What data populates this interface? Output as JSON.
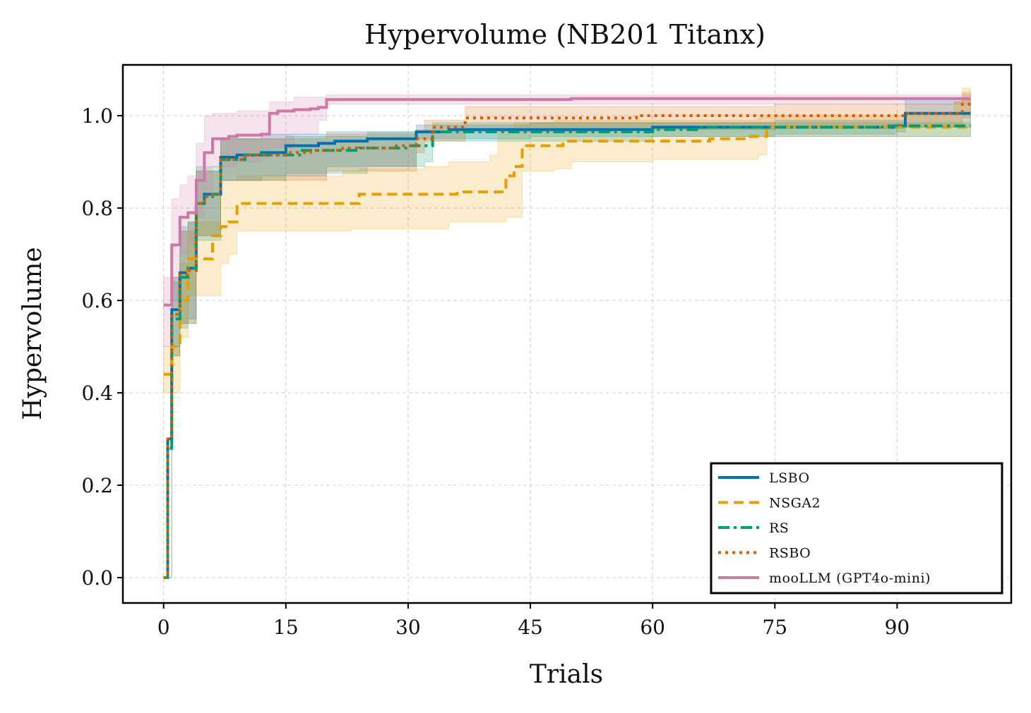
{
  "chart_data": {
    "type": "line",
    "title": "Hypervolume (NB201 Titanx)",
    "xlabel": "Trials",
    "ylabel": "Hypervolume",
    "xlim": [
      -5,
      104
    ],
    "ylim": [
      -0.055,
      1.11
    ],
    "xticks": [
      0,
      15,
      30,
      45,
      60,
      75,
      90
    ],
    "yticks": [
      0.0,
      0.2,
      0.4,
      0.6,
      0.8,
      1.0
    ],
    "ytick_labels": [
      "0.0",
      "0.2",
      "0.4",
      "0.6",
      "0.8",
      "1.0"
    ],
    "xtick_labels": [
      "0",
      "15",
      "30",
      "45",
      "60",
      "75",
      "90"
    ],
    "grid": true,
    "legend_position": "lower-right",
    "series": [
      {
        "name": "LSBO",
        "color": "#0072B2",
        "dash": "solid",
        "points": [
          [
            0,
            0.0
          ],
          [
            0.5,
            0.3
          ],
          [
            1,
            0.58
          ],
          [
            2,
            0.66
          ],
          [
            3,
            0.67
          ],
          [
            4,
            0.81
          ],
          [
            5,
            0.83
          ],
          [
            6,
            0.83
          ],
          [
            7,
            0.91
          ],
          [
            9,
            0.915
          ],
          [
            12,
            0.92
          ],
          [
            15,
            0.935
          ],
          [
            19,
            0.94
          ],
          [
            21,
            0.945
          ],
          [
            25,
            0.95
          ],
          [
            30,
            0.95
          ],
          [
            31,
            0.965
          ],
          [
            33,
            0.965
          ],
          [
            35,
            0.97
          ],
          [
            45,
            0.97
          ],
          [
            60,
            0.975
          ],
          [
            75,
            0.975
          ],
          [
            90,
            0.978
          ],
          [
            91,
            1.005
          ],
          [
            99,
            1.005
          ]
        ],
        "band_upper": [
          [
            0,
            0.0
          ],
          [
            1,
            0.65
          ],
          [
            2,
            0.76
          ],
          [
            3,
            0.77
          ],
          [
            4,
            0.88
          ],
          [
            7,
            0.95
          ],
          [
            12,
            0.96
          ],
          [
            20,
            0.965
          ],
          [
            31,
            0.98
          ],
          [
            45,
            0.985
          ],
          [
            75,
            0.99
          ],
          [
            90,
            0.99
          ],
          [
            91,
            1.035
          ],
          [
            99,
            1.035
          ]
        ],
        "band_lower": [
          [
            0,
            0.0
          ],
          [
            1,
            0.5
          ],
          [
            2,
            0.55
          ],
          [
            3,
            0.56
          ],
          [
            4,
            0.74
          ],
          [
            7,
            0.86
          ],
          [
            12,
            0.87
          ],
          [
            20,
            0.89
          ],
          [
            31,
            0.95
          ],
          [
            45,
            0.955
          ],
          [
            75,
            0.96
          ],
          [
            90,
            0.965
          ],
          [
            91,
            0.975
          ],
          [
            99,
            0.975
          ]
        ]
      },
      {
        "name": "NSGA2",
        "color": "#E69F00",
        "dash": "dashed",
        "points": [
          [
            0,
            0.44
          ],
          [
            1,
            0.5
          ],
          [
            2,
            0.6
          ],
          [
            3,
            0.69
          ],
          [
            5,
            0.69
          ],
          [
            6,
            0.74
          ],
          [
            7,
            0.76
          ],
          [
            8,
            0.77
          ],
          [
            9,
            0.81
          ],
          [
            20,
            0.81
          ],
          [
            22,
            0.81
          ],
          [
            24,
            0.83
          ],
          [
            34,
            0.83
          ],
          [
            36,
            0.835
          ],
          [
            40,
            0.835
          ],
          [
            42,
            0.87
          ],
          [
            43,
            0.89
          ],
          [
            44,
            0.935
          ],
          [
            48,
            0.935
          ],
          [
            49,
            0.945
          ],
          [
            60,
            0.945
          ],
          [
            66,
            0.945
          ],
          [
            67,
            0.95
          ],
          [
            72,
            0.955
          ],
          [
            73,
            0.955
          ],
          [
            74,
            0.975
          ],
          [
            99,
            0.98
          ]
        ],
        "band_upper": [
          [
            0,
            0.5
          ],
          [
            2,
            0.68
          ],
          [
            3,
            0.77
          ],
          [
            7,
            0.86
          ],
          [
            9,
            0.87
          ],
          [
            22,
            0.88
          ],
          [
            24,
            0.885
          ],
          [
            32,
            0.89
          ],
          [
            35,
            0.9
          ],
          [
            40,
            0.915
          ],
          [
            41,
            0.96
          ],
          [
            43,
            0.985
          ],
          [
            48,
            0.99
          ],
          [
            60,
            0.99
          ],
          [
            73,
            0.995
          ],
          [
            74,
            1.0
          ],
          [
            97,
            1.03
          ],
          [
            98,
            1.06
          ],
          [
            99,
            1.06
          ]
        ],
        "band_lower": [
          [
            0,
            0.4
          ],
          [
            2,
            0.52
          ],
          [
            3,
            0.61
          ],
          [
            5,
            0.61
          ],
          [
            7,
            0.68
          ],
          [
            8,
            0.7
          ],
          [
            9,
            0.75
          ],
          [
            20,
            0.75
          ],
          [
            23,
            0.755
          ],
          [
            35,
            0.77
          ],
          [
            40,
            0.77
          ],
          [
            42,
            0.78
          ],
          [
            43,
            0.78
          ],
          [
            44,
            0.88
          ],
          [
            48,
            0.885
          ],
          [
            50,
            0.9
          ],
          [
            60,
            0.905
          ],
          [
            73,
            0.915
          ],
          [
            74,
            0.955
          ],
          [
            99,
            0.955
          ]
        ]
      },
      {
        "name": "RS",
        "color": "#009E73",
        "dash": "dashdot",
        "points": [
          [
            0,
            0.0
          ],
          [
            0.5,
            0.28
          ],
          [
            1,
            0.56
          ],
          [
            2,
            0.65
          ],
          [
            3,
            0.67
          ],
          [
            4,
            0.81
          ],
          [
            5,
            0.825
          ],
          [
            6,
            0.83
          ],
          [
            7,
            0.905
          ],
          [
            10,
            0.915
          ],
          [
            15,
            0.915
          ],
          [
            17,
            0.925
          ],
          [
            20,
            0.925
          ],
          [
            24,
            0.93
          ],
          [
            30,
            0.935
          ],
          [
            32,
            0.935
          ],
          [
            33,
            0.965
          ],
          [
            45,
            0.965
          ],
          [
            60,
            0.97
          ],
          [
            66,
            0.975
          ],
          [
            75,
            0.975
          ],
          [
            89,
            0.978
          ],
          [
            99,
            0.978
          ]
        ],
        "band_upper": [
          [
            0,
            0.0
          ],
          [
            1,
            0.64
          ],
          [
            2,
            0.75
          ],
          [
            3,
            0.77
          ],
          [
            4,
            0.89
          ],
          [
            7,
            0.95
          ],
          [
            15,
            0.955
          ],
          [
            25,
            0.965
          ],
          [
            32,
            0.97
          ],
          [
            33,
            0.985
          ],
          [
            60,
            0.985
          ],
          [
            99,
            0.99
          ]
        ],
        "band_lower": [
          [
            0,
            0.0
          ],
          [
            1,
            0.48
          ],
          [
            2,
            0.54
          ],
          [
            3,
            0.55
          ],
          [
            4,
            0.73
          ],
          [
            7,
            0.86
          ],
          [
            15,
            0.875
          ],
          [
            25,
            0.89
          ],
          [
            32,
            0.9
          ],
          [
            33,
            0.945
          ],
          [
            60,
            0.955
          ],
          [
            99,
            0.965
          ]
        ]
      },
      {
        "name": "RSBO",
        "color": "#D55E00",
        "dash": "dotted",
        "points": [
          [
            0,
            0.0
          ],
          [
            0.5,
            0.3
          ],
          [
            1,
            0.57
          ],
          [
            2,
            0.655
          ],
          [
            3,
            0.665
          ],
          [
            4,
            0.81
          ],
          [
            5,
            0.825
          ],
          [
            6,
            0.83
          ],
          [
            7,
            0.905
          ],
          [
            10,
            0.915
          ],
          [
            15,
            0.92
          ],
          [
            18,
            0.925
          ],
          [
            22,
            0.93
          ],
          [
            28,
            0.935
          ],
          [
            31,
            0.95
          ],
          [
            33,
            0.975
          ],
          [
            36,
            0.975
          ],
          [
            37,
            0.995
          ],
          [
            55,
            0.995
          ],
          [
            58,
            1.0
          ],
          [
            75,
            1.0
          ],
          [
            90,
            1.0
          ],
          [
            91,
            1.005
          ],
          [
            97,
            1.005
          ],
          [
            98,
            1.025
          ],
          [
            99,
            1.025
          ]
        ],
        "band_upper": [
          [
            0,
            0.0
          ],
          [
            1,
            0.65
          ],
          [
            2,
            0.75
          ],
          [
            4,
            0.88
          ],
          [
            7,
            0.95
          ],
          [
            20,
            0.96
          ],
          [
            31,
            0.97
          ],
          [
            32,
            0.99
          ],
          [
            37,
            1.02
          ],
          [
            55,
            1.02
          ],
          [
            75,
            1.025
          ],
          [
            97,
            1.03
          ],
          [
            98,
            1.05
          ],
          [
            99,
            1.05
          ]
        ],
        "band_lower": [
          [
            0,
            0.0
          ],
          [
            1,
            0.48
          ],
          [
            2,
            0.55
          ],
          [
            4,
            0.74
          ],
          [
            7,
            0.86
          ],
          [
            20,
            0.88
          ],
          [
            31,
            0.92
          ],
          [
            32,
            0.945
          ],
          [
            37,
            0.965
          ],
          [
            55,
            0.97
          ],
          [
            75,
            0.975
          ],
          [
            97,
            0.975
          ],
          [
            98,
            0.995
          ],
          [
            99,
            0.995
          ]
        ]
      },
      {
        "name": "mooLLM (GPT4o-mini)",
        "color": "#CC79A7",
        "dash": "solid",
        "points": [
          [
            0,
            0.59
          ],
          [
            1,
            0.72
          ],
          [
            2,
            0.78
          ],
          [
            3,
            0.79
          ],
          [
            4,
            0.86
          ],
          [
            5,
            0.92
          ],
          [
            6,
            0.95
          ],
          [
            8,
            0.955
          ],
          [
            9,
            0.958
          ],
          [
            12,
            0.96
          ],
          [
            13,
            1.005
          ],
          [
            14,
            1.01
          ],
          [
            16,
            1.013
          ],
          [
            18,
            1.015
          ],
          [
            19,
            1.018
          ],
          [
            20,
            1.035
          ],
          [
            30,
            1.035
          ],
          [
            50,
            1.037
          ],
          [
            99,
            1.037
          ]
        ],
        "band_upper": [
          [
            0,
            0.65
          ],
          [
            1,
            0.82
          ],
          [
            2,
            0.85
          ],
          [
            3,
            0.87
          ],
          [
            4,
            0.94
          ],
          [
            5,
            1.0
          ],
          [
            6,
            1.005
          ],
          [
            9,
            1.01
          ],
          [
            13,
            1.03
          ],
          [
            16,
            1.04
          ],
          [
            20,
            1.045
          ],
          [
            99,
            1.045
          ]
        ],
        "band_lower": [
          [
            0,
            0.5
          ],
          [
            1,
            0.6
          ],
          [
            2,
            0.7
          ],
          [
            3,
            0.72
          ],
          [
            4,
            0.78
          ],
          [
            5,
            0.84
          ],
          [
            6,
            0.89
          ],
          [
            9,
            0.9
          ],
          [
            12,
            0.91
          ],
          [
            13,
            0.93
          ],
          [
            16,
            0.96
          ],
          [
            19,
            0.99
          ],
          [
            20,
            1.025
          ],
          [
            99,
            1.025
          ]
        ]
      }
    ]
  }
}
